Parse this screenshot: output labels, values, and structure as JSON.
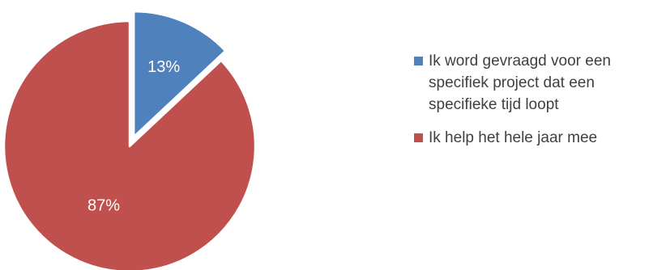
{
  "chart_data": {
    "type": "pie",
    "categories": [
      "Ik word gevraagd voor een specifiek project dat een specifieke tijd loopt",
      "Ik help het hele jaar mee"
    ],
    "values": [
      13,
      87
    ],
    "value_labels": [
      "13%",
      "87%"
    ],
    "colors": [
      "#4f81bd",
      "#c0504d"
    ],
    "exploded": [
      true,
      false
    ],
    "legend_position": "right"
  }
}
